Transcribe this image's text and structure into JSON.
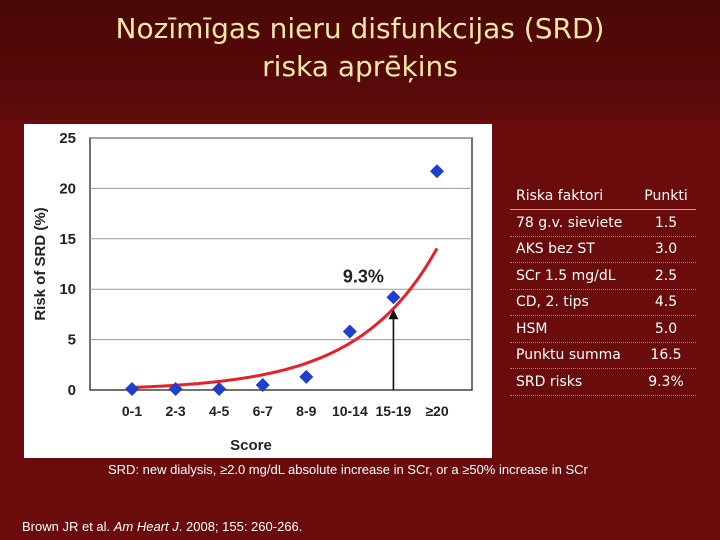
{
  "slide": {
    "title_line1": "Nozīmīgas nieru disfunkcijas (SRD)",
    "title_line2": "riska aprēķins",
    "footnote": "SRD: new dialysis, ≥2.0 mg/dL absolute increase in SCr, or a ≥50% increase in SCr",
    "citation_author": "Brown JR et al. ",
    "citation_journal": "Am Heart J",
    "citation_rest": ". 2008; 155: 260-266."
  },
  "table": {
    "header": {
      "label": "Riska faktori",
      "value": "Punkti"
    },
    "rows": [
      {
        "label": "78 g.v. sieviete",
        "value": "1.5"
      },
      {
        "label": "AKS bez ST",
        "value": "3.0"
      },
      {
        "label": "SCr 1.5 mg/dL",
        "value": "2.5"
      },
      {
        "label": "CD, 2. tips",
        "value": "4.5"
      },
      {
        "label": "HSM",
        "value": "5.0"
      },
      {
        "label": "Punktu summa",
        "value": "16.5"
      },
      {
        "label": "SRD risks",
        "value": "9.3%"
      }
    ]
  },
  "chart_data": {
    "type": "scatter",
    "title": "",
    "xlabel": "Score",
    "ylabel": "Risk of SRD (%)",
    "categories": [
      "0-1",
      "2-3",
      "4-5",
      "6-7",
      "8-9",
      "10-14",
      "15-19",
      "≥20"
    ],
    "values": [
      0.1,
      0.1,
      0.1,
      0.5,
      1.3,
      5.8,
      9.2,
      21.7
    ],
    "ylim": [
      0,
      25
    ],
    "yticks": [
      0,
      5,
      10,
      15,
      20,
      25
    ],
    "grid": true,
    "fitted_curve": true,
    "annotation": {
      "text": "9.3%",
      "category": "15-19"
    },
    "colors": {
      "marker": "#1f3fd0",
      "curve": "#e8202a",
      "grid": "#999999"
    }
  }
}
